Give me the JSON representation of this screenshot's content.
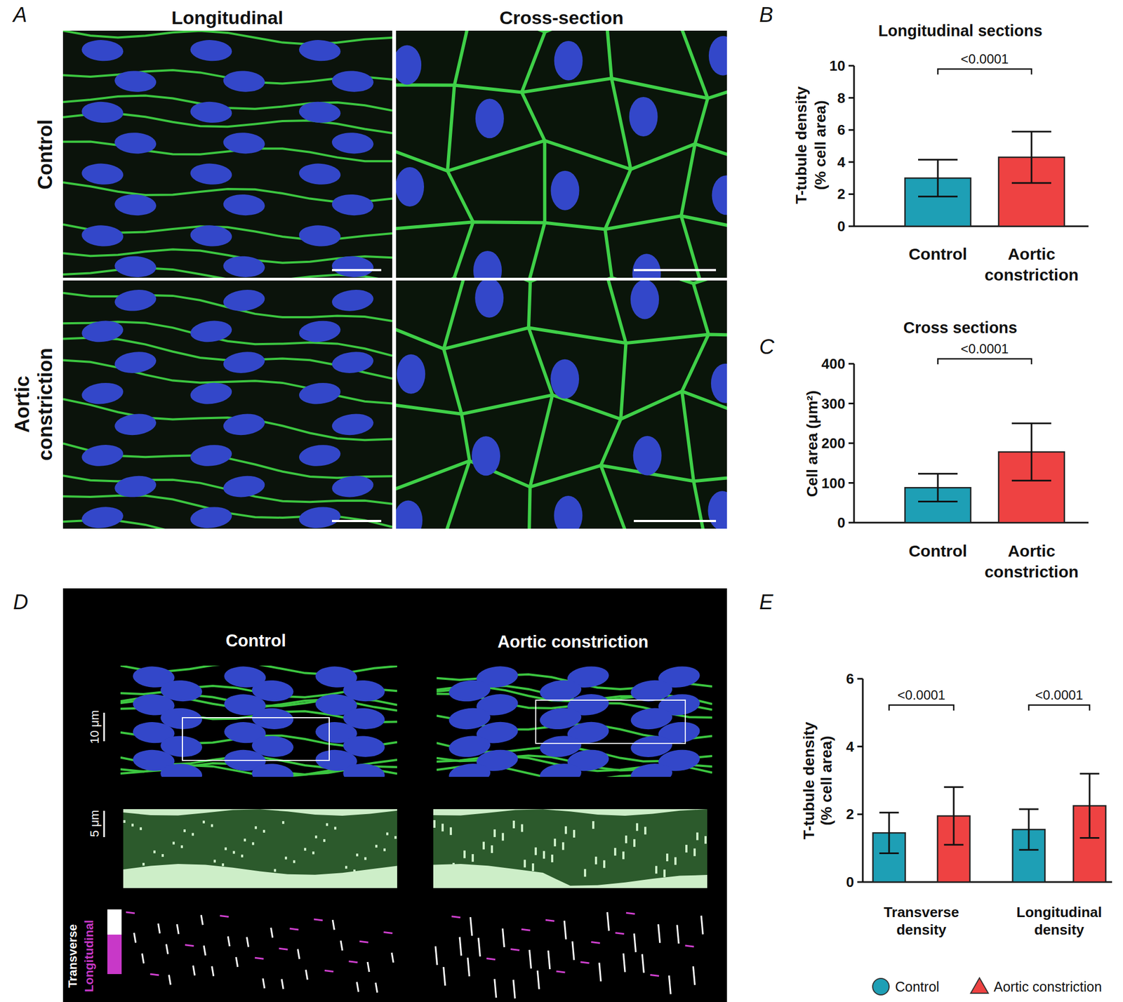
{
  "panel_labels": [
    "A",
    "B",
    "C",
    "D",
    "E"
  ],
  "panel_a": {
    "columns": [
      "Longitudinal",
      "Cross-section"
    ],
    "rows": [
      "Control",
      "Aortic constriction"
    ]
  },
  "panel_d": {
    "columns": [
      "Control",
      "Aortic constriction"
    ],
    "scale_bars": [
      "10 μm",
      "5 μm"
    ],
    "legend": [
      "Transverse",
      "Longitudinal"
    ]
  },
  "chart_data": [
    {
      "type": "bar",
      "title": "Longitudinal sections",
      "y_label": [
        "T-tubule density",
        "(% cell area)"
      ],
      "categories": [
        "Control",
        "Aortic constriction"
      ],
      "values": [
        3.0,
        4.3
      ],
      "errors": [
        1.15,
        1.6
      ],
      "colors": [
        "#1e9fb5",
        "#ee4242"
      ],
      "ylim": [
        0,
        10
      ],
      "yticks": [
        0,
        2,
        4,
        6,
        8,
        10
      ],
      "annotations": [
        "<0.0001"
      ]
    },
    {
      "type": "bar",
      "title": "Cross sections",
      "y_label": [
        "Cell area (μm²)"
      ],
      "categories": [
        "Control",
        "Aortic constriction"
      ],
      "values": [
        88,
        178
      ],
      "errors": [
        35,
        72
      ],
      "colors": [
        "#1e9fb5",
        "#ee4242"
      ],
      "ylim": [
        0,
        400
      ],
      "yticks": [
        0,
        100,
        200,
        300,
        400
      ],
      "annotations": [
        "<0.0001"
      ]
    },
    {
      "type": "bar",
      "y_label": [
        "T-tubule density",
        "(% cell area)"
      ],
      "categories": [
        "Transverse density",
        "Longitudinal density"
      ],
      "series": [
        {
          "name": "Control",
          "color": "#1e9fb5",
          "marker": "circle",
          "values": [
            1.45,
            1.55
          ],
          "errors": [
            0.6,
            0.6
          ]
        },
        {
          "name": "Aortic constriction",
          "color": "#ee4242",
          "marker": "triangle",
          "values": [
            1.95,
            2.25
          ],
          "errors": [
            0.85,
            0.95
          ]
        }
      ],
      "ylim": [
        0,
        6
      ],
      "yticks": [
        0,
        2,
        4,
        6
      ],
      "legend": "bottom",
      "annotations": [
        "<0.0001",
        "<0.0001"
      ]
    }
  ]
}
